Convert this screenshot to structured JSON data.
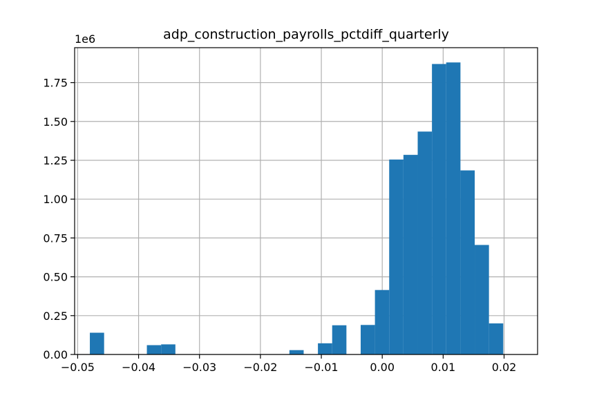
{
  "chart_data": {
    "type": "bar",
    "title": "adp_construction_payrolls_pctdiff_quarterly",
    "xlabel": "",
    "ylabel": "",
    "y_offset_label": "1e6",
    "grid": true,
    "color": "#1f77b4",
    "xlim": [
      -0.0505,
      0.0255
    ],
    "ylim": [
      0,
      1975000
    ],
    "x_ticks": [
      -0.05,
      -0.04,
      -0.03,
      -0.02,
      -0.01,
      0.0,
      0.01,
      0.02
    ],
    "x_tick_labels": [
      "−0.05",
      "−0.04",
      "−0.03",
      "−0.02",
      "−0.01",
      "0.00",
      "0.01",
      "0.02"
    ],
    "y_ticks": [
      0,
      250000,
      500000,
      750000,
      1000000,
      1250000,
      1500000,
      1750000
    ],
    "y_tick_labels": [
      "0.00",
      "0.25",
      "0.50",
      "0.75",
      "1.00",
      "1.25",
      "1.50",
      "1.75"
    ],
    "bin_start": -0.048,
    "bin_width": 0.00234,
    "values": [
      140000,
      0,
      0,
      0,
      60000,
      65000,
      0,
      0,
      0,
      0,
      0,
      0,
      0,
      0,
      28000,
      0,
      72000,
      188000,
      0,
      190000,
      415000,
      1255000,
      1285000,
      1435000,
      1870000,
      1880000,
      1185000,
      705000,
      200000
    ]
  }
}
